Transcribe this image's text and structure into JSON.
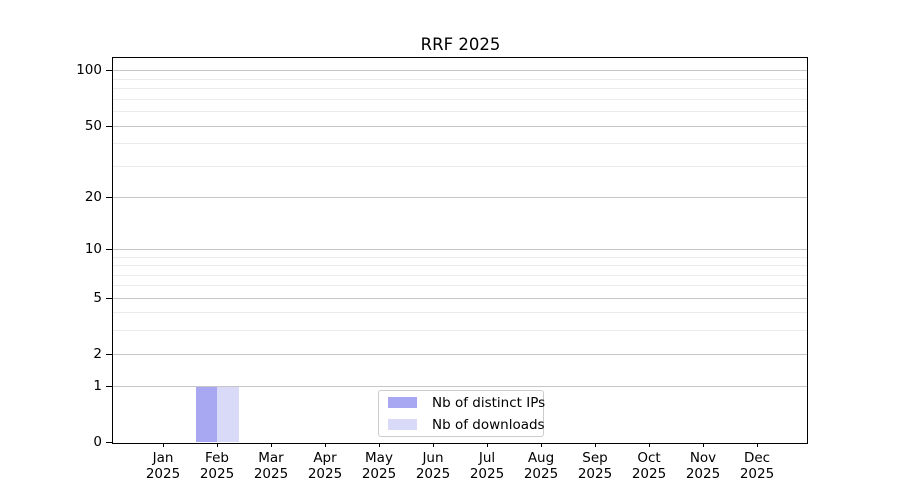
{
  "chart_data": {
    "type": "bar",
    "title": "RRF 2025",
    "categories": [
      {
        "month": "Jan",
        "year": "2025"
      },
      {
        "month": "Feb",
        "year": "2025"
      },
      {
        "month": "Mar",
        "year": "2025"
      },
      {
        "month": "Apr",
        "year": "2025"
      },
      {
        "month": "May",
        "year": "2025"
      },
      {
        "month": "Jun",
        "year": "2025"
      },
      {
        "month": "Jul",
        "year": "2025"
      },
      {
        "month": "Aug",
        "year": "2025"
      },
      {
        "month": "Sep",
        "year": "2025"
      },
      {
        "month": "Oct",
        "year": "2025"
      },
      {
        "month": "Nov",
        "year": "2025"
      },
      {
        "month": "Dec",
        "year": "2025"
      }
    ],
    "series": [
      {
        "name": "Nb of distinct IPs",
        "color": "#a7a7f2",
        "values": [
          0,
          1,
          0,
          0,
          0,
          0,
          0,
          0,
          0,
          0,
          0,
          0
        ]
      },
      {
        "name": "Nb of downloads",
        "color": "#d9d9f8",
        "values": [
          0,
          1,
          0,
          0,
          0,
          0,
          0,
          0,
          0,
          0,
          0,
          0
        ]
      }
    ],
    "xlabel": "",
    "ylabel": "",
    "yscale": "log1p",
    "ylim": [
      0,
      117.7
    ],
    "yticks": [
      0,
      1,
      2,
      5,
      10,
      20,
      50,
      100
    ],
    "minor_yticks": [
      3,
      4,
      6,
      7,
      8,
      9,
      30,
      40,
      60,
      70,
      80,
      90
    ],
    "grid": true,
    "legend_position": "lower center inside"
  },
  "styles": {
    "background": "#ffffff",
    "axis_color": "#000000",
    "text_color": "#000000",
    "grid_major_color": "#c6c6c6",
    "grid_minor_color": "#ebebeb",
    "legend_border_color": "#cccccc"
  }
}
